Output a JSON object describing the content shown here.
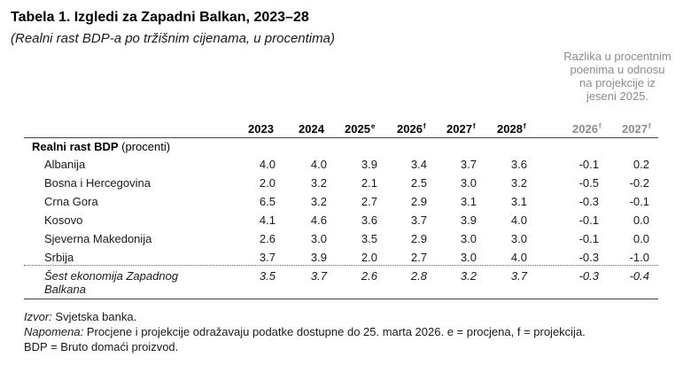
{
  "title": "Tabela 1. Izgledi za Zapadni Balkan, 2023–28",
  "subtitle": "(Realni rast BDP-a po tržišnim cijenama, u procentima)",
  "diff_note": [
    "Razlika u procentnim",
    "poenima u odnosu",
    "na projekcije iz",
    "jeseni 2025."
  ],
  "columns": [
    {
      "year": "2023",
      "sup": ""
    },
    {
      "year": "2024",
      "sup": ""
    },
    {
      "year": "2025",
      "sup": "e"
    },
    {
      "year": "2026",
      "sup": "f"
    },
    {
      "year": "2027",
      "sup": "f"
    },
    {
      "year": "2028",
      "sup": "f"
    },
    {
      "year": "2026",
      "sup": "f"
    },
    {
      "year": "2027",
      "sup": "f"
    }
  ],
  "section": {
    "bold": "Realni rast BDP",
    "rest": " (procenti)"
  },
  "rows": [
    {
      "label": "Albanija",
      "values": [
        "4.0",
        "4.0",
        "3.9",
        "3.4",
        "3.7",
        "3.6",
        "-0.1",
        "0.2"
      ]
    },
    {
      "label": "Bosna i Hercegovina",
      "values": [
        "2.0",
        "3.2",
        "2.1",
        "2.5",
        "3.0",
        "3.2",
        "-0.5",
        "-0.2"
      ]
    },
    {
      "label": "Crna Gora",
      "values": [
        "6.5",
        "3.2",
        "2.7",
        "2.9",
        "3.1",
        "3.1",
        "-0.3",
        "-0.1"
      ]
    },
    {
      "label": "Kosovo",
      "values": [
        "4.1",
        "4.6",
        "3.6",
        "3.7",
        "3.9",
        "4.0",
        "-0.1",
        "0.0"
      ]
    },
    {
      "label": "Sjeverna Makedonija",
      "values": [
        "2.6",
        "3.0",
        "3.5",
        "2.9",
        "3.0",
        "3.0",
        "-0.1",
        "0.0"
      ]
    },
    {
      "label": "Srbija",
      "values": [
        "3.7",
        "3.9",
        "2.0",
        "2.7",
        "3.0",
        "4.0",
        "-0.3",
        "-1.0"
      ]
    }
  ],
  "total": {
    "label_line1": "Šest ekonomija Zapadnog",
    "label_line2": "Balkana",
    "values": [
      "3.5",
      "3.7",
      "2.6",
      "2.8",
      "3.2",
      "3.7",
      "-0.3",
      "-0.4"
    ]
  },
  "footnotes": {
    "source_label": "Izvor:",
    "source_text": " Svjetska banka.",
    "note_label": "Napomena:",
    "note_text": " Procjene i projekcije odražavaju podatke dostupne do 25. marta 2026. e = procjena, f = projekcija.",
    "bdp_text": "BDP = Bruto domaći proizvod."
  }
}
